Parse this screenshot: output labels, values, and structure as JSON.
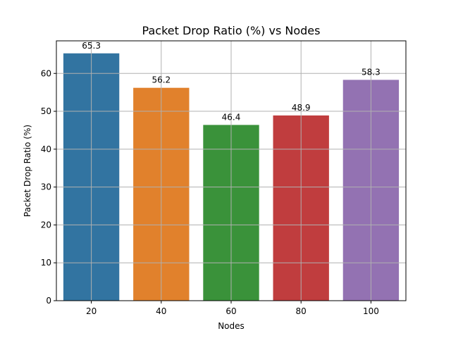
{
  "chart_data": {
    "type": "bar",
    "title": "Packet Drop Ratio (%) vs Nodes",
    "xlabel": "Nodes",
    "ylabel": "Packet Drop Ratio (%)",
    "categories": [
      "20",
      "40",
      "60",
      "80",
      "100"
    ],
    "values": [
      65.3,
      56.2,
      46.4,
      48.9,
      58.3
    ],
    "data_labels": [
      "65.3",
      "56.2",
      "46.4",
      "48.9",
      "58.3"
    ],
    "colors": [
      "#3274a1",
      "#e1812c",
      "#3a923a",
      "#c03d3e",
      "#9372b2"
    ],
    "ylim": [
      0,
      68.6
    ],
    "yticks": [
      0,
      10,
      20,
      30,
      40,
      50,
      60
    ],
    "ytick_labels": [
      "0",
      "10",
      "20",
      "30",
      "40",
      "50",
      "60"
    ],
    "grid": true
  }
}
